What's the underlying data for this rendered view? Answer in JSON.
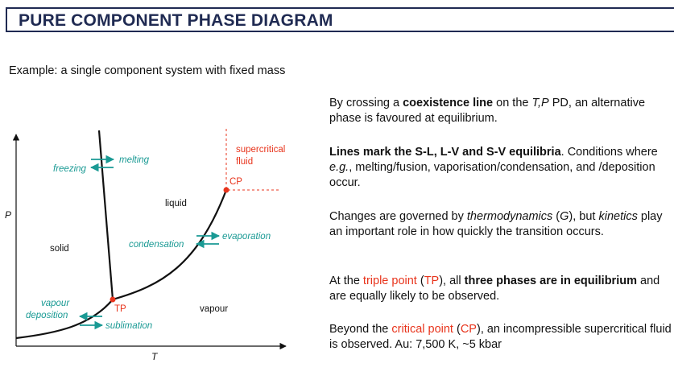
{
  "header": {
    "title": "PURE COMPONENT PHASE DIAGRAM"
  },
  "subtitle": "Example: a single component system with fixed mass",
  "diagram": {
    "axes": {
      "x_label": "T",
      "y_label": "P"
    },
    "regions": {
      "solid": "solid",
      "liquid": "liquid",
      "vapour": "vapour"
    },
    "transitions": {
      "melting": "melting",
      "freezing": "freezing",
      "evaporation": "evaporation",
      "condensation": "condensation",
      "vapour_deposition_line1": "vapour",
      "vapour_deposition_line2": "deposition",
      "sublimation": "sublimation"
    },
    "points": {
      "triple": "TP",
      "critical": "CP"
    },
    "supercritical_line1": "supercritical",
    "supercritical_line2": "fluid",
    "colors": {
      "line": "#111111",
      "teal": "#1a9a94",
      "red": "#e8341c"
    }
  },
  "text": {
    "p1_a": "By crossing a ",
    "p1_b": "coexistence line",
    "p1_c": " on the ",
    "p1_d": "T,P",
    "p1_e": " PD, an alternative phase is favoured at equilibrium.",
    "p2_a": "Lines mark the S-L, L-V and S-V equilibria",
    "p2_b": ". Conditions where ",
    "p2_c": "e.g.",
    "p2_d": ", melting/fusion, vaporisation/condensation, and /deposition occur.",
    "p3_a": "Changes are governed by ",
    "p3_b": "thermodynamics",
    "p3_c": " (",
    "p3_d": "G",
    "p3_e": "), but ",
    "p3_f": "kinetics",
    "p3_g": " play an important role in how quickly the transition occurs.",
    "p4_a": "At the ",
    "p4_b": "triple point",
    "p4_c": " (",
    "p4_d": "TP",
    "p4_e": "), all ",
    "p4_f": "three phases are in equilibrium",
    "p4_g": " and are equally likely to be observed.",
    "p5_a": "Beyond the ",
    "p5_b": "critical point",
    "p5_c": " (",
    "p5_d": "CP",
    "p5_e": "), an incompressible supercritical fluid is observed. Au: 7,500 K, ~5 kbar"
  }
}
